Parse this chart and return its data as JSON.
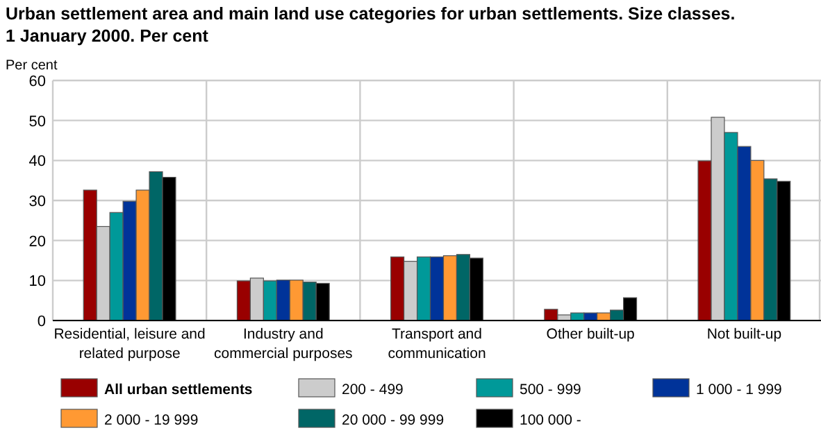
{
  "chart_data": {
    "type": "bar",
    "title": "Urban settlement area and main land use categories for urban settlements. Size classes.\n1 January 2000. Per cent",
    "ylabel": "Per cent",
    "categories": [
      "Residential, leisure and\nrelated purpose",
      "Industry and\ncommercial purposes",
      "Transport and\ncommunication",
      "Other built-up",
      "Not built-up"
    ],
    "series": [
      {
        "name": "All urban settlements",
        "color": "#990000",
        "values": [
          32.6,
          9.9,
          15.9,
          2.8,
          39.9
        ]
      },
      {
        "name": "200 - 499",
        "color": "#cccccc",
        "values": [
          23.5,
          10.6,
          14.8,
          1.4,
          50.8
        ]
      },
      {
        "name": "500 - 999",
        "color": "#009999",
        "values": [
          27.0,
          9.9,
          15.9,
          1.9,
          47.0
        ]
      },
      {
        "name": "1 000 - 1 999",
        "color": "#003399",
        "values": [
          29.8,
          10.1,
          15.9,
          1.9,
          43.5
        ]
      },
      {
        "name": "2 000 - 19 999",
        "color": "#ff9933",
        "values": [
          32.6,
          10.1,
          16.2,
          1.9,
          40.0
        ]
      },
      {
        "name": "20 000 - 99 999",
        "color": "#006666",
        "values": [
          37.2,
          9.6,
          16.5,
          2.6,
          35.4
        ]
      },
      {
        "name": "100 000 -",
        "color": "#000000",
        "values": [
          35.8,
          9.3,
          15.6,
          5.7,
          34.8
        ]
      }
    ],
    "ylim": [
      0,
      60
    ],
    "yticks": [
      0,
      10,
      20,
      30,
      40,
      50,
      60
    ],
    "grid": true,
    "legend": "bottom"
  }
}
